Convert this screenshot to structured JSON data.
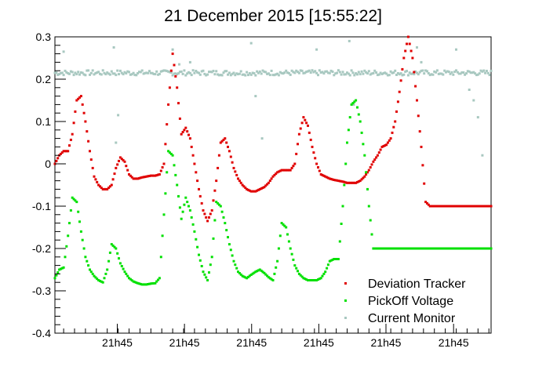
{
  "chart_data": {
    "type": "scatter",
    "title": "21 December 2015 [15:55:22]",
    "xlabel": "",
    "ylabel": "",
    "xlim": [
      0,
      100
    ],
    "ylim": [
      -0.4,
      0.3
    ],
    "grid": false,
    "legend_position": "bottom-right",
    "y_ticks": [
      {
        "value": 0.3,
        "label": "0.3"
      },
      {
        "value": 0.2,
        "label": "0.2"
      },
      {
        "value": 0.1,
        "label": "0.1"
      },
      {
        "value": 0.0,
        "label": "0"
      },
      {
        "value": -0.1,
        "label": "-0.1"
      },
      {
        "value": -0.2,
        "label": "-0.2"
      },
      {
        "value": -0.3,
        "label": "-0.3"
      },
      {
        "value": -0.4,
        "label": "-0.4"
      }
    ],
    "x_ticks": [
      {
        "value": 14.3,
        "label": "21h45"
      },
      {
        "value": 29.7,
        "label": "21h45"
      },
      {
        "value": 45.1,
        "label": "21h45"
      },
      {
        "value": 60.5,
        "label": "21h45"
      },
      {
        "value": 75.9,
        "label": "21h45"
      },
      {
        "value": 91.4,
        "label": "21h45"
      }
    ],
    "series": [
      {
        "name": "Deviation Tracker",
        "color": "#e00000",
        "x": [
          0,
          1,
          2,
          3,
          4,
          5,
          6,
          7,
          8,
          9,
          10,
          11,
          12,
          13,
          14,
          15,
          16,
          17,
          18,
          19,
          20,
          21,
          22,
          23,
          24,
          25,
          26,
          27,
          28,
          29,
          30,
          31,
          32,
          33,
          34,
          35,
          36,
          37,
          38,
          39,
          40,
          41,
          42,
          43,
          44,
          45,
          46,
          47,
          48,
          49,
          50,
          51,
          52,
          53,
          54,
          55,
          56,
          57,
          58,
          59,
          60,
          61,
          62,
          63,
          64,
          65,
          66,
          67,
          68,
          69,
          70,
          71,
          72,
          73,
          74,
          75,
          76,
          77,
          78,
          79,
          80,
          81,
          82,
          83,
          84,
          85,
          86,
          87,
          88,
          89,
          90,
          91,
          92,
          93,
          94,
          95,
          96,
          97,
          98,
          99,
          100
        ],
        "y": [
          0.0,
          0.02,
          0.03,
          0.03,
          0.07,
          0.15,
          0.16,
          0.1,
          0.03,
          -0.03,
          -0.05,
          -0.06,
          -0.06,
          -0.05,
          -0.01,
          0.015,
          0.005,
          -0.025,
          -0.035,
          -0.035,
          -0.032,
          -0.03,
          -0.028,
          -0.028,
          -0.025,
          0.0,
          0.14,
          0.26,
          0.18,
          0.07,
          0.085,
          0.06,
          0.0,
          -0.06,
          -0.11,
          -0.135,
          -0.11,
          -0.04,
          0.05,
          0.06,
          0.03,
          -0.01,
          -0.035,
          -0.05,
          -0.06,
          -0.065,
          -0.065,
          -0.06,
          -0.055,
          -0.045,
          -0.03,
          -0.02,
          -0.015,
          -0.015,
          -0.015,
          0.0,
          0.07,
          0.11,
          0.09,
          0.04,
          0.0,
          -0.025,
          -0.03,
          -0.035,
          -0.038,
          -0.04,
          -0.042,
          -0.045,
          -0.045,
          -0.045,
          -0.04,
          -0.03,
          -0.015,
          0.005,
          0.02,
          0.04,
          0.045,
          0.06,
          0.1,
          0.17,
          0.25,
          0.3,
          0.25,
          0.15,
          0.04,
          -0.09,
          -0.1,
          -0.1,
          -0.1,
          -0.1,
          -0.1,
          -0.1,
          -0.1,
          -0.1,
          -0.1,
          -0.1,
          -0.1,
          -0.1,
          -0.1,
          -0.1,
          -0.1
        ]
      },
      {
        "name": "PickOff Voltage",
        "color": "#00e000",
        "x": [
          0,
          1,
          2,
          3,
          4,
          5,
          6,
          7,
          8,
          9,
          10,
          11,
          12,
          13,
          14,
          15,
          16,
          17,
          18,
          19,
          20,
          21,
          22,
          23,
          24,
          25,
          26,
          27,
          28,
          29,
          30,
          31,
          32,
          33,
          34,
          35,
          36,
          37,
          38,
          39,
          40,
          41,
          42,
          43,
          44,
          45,
          46,
          47,
          48,
          49,
          50,
          51,
          52,
          53,
          54,
          55,
          56,
          57,
          58,
          59,
          60,
          61,
          62,
          63,
          64,
          65,
          66,
          67,
          68,
          69,
          70,
          71,
          72,
          73,
          74,
          75,
          76,
          77,
          78,
          79,
          80,
          81,
          82,
          83,
          84,
          85,
          86,
          87,
          88,
          89,
          90,
          91,
          92,
          93,
          94,
          95,
          96,
          97,
          98,
          99,
          100
        ],
        "y": [
          -0.27,
          -0.25,
          -0.245,
          -0.17,
          -0.08,
          -0.09,
          -0.16,
          -0.22,
          -0.25,
          -0.265,
          -0.275,
          -0.28,
          -0.25,
          -0.19,
          -0.2,
          -0.235,
          -0.255,
          -0.27,
          -0.278,
          -0.282,
          -0.285,
          -0.285,
          -0.283,
          -0.282,
          -0.27,
          -0.12,
          0.03,
          0.02,
          -0.05,
          -0.13,
          -0.08,
          -0.11,
          -0.16,
          -0.215,
          -0.255,
          -0.275,
          -0.22,
          -0.09,
          -0.1,
          -0.14,
          -0.19,
          -0.23,
          -0.255,
          -0.265,
          -0.27,
          -0.262,
          -0.255,
          -0.25,
          -0.258,
          -0.268,
          -0.275,
          -0.23,
          -0.14,
          -0.15,
          -0.2,
          -0.24,
          -0.26,
          -0.27,
          -0.275,
          -0.275,
          -0.275,
          -0.27,
          -0.255,
          -0.23,
          -0.225,
          -0.225,
          -0.1,
          0.05,
          0.14,
          0.15,
          0.1,
          0.02,
          -0.1,
          -0.2,
          -0.2,
          -0.2,
          -0.2,
          -0.2,
          -0.2,
          -0.2,
          -0.2,
          -0.2,
          -0.2,
          -0.2,
          -0.2,
          -0.2,
          -0.2,
          -0.2,
          -0.2,
          -0.2,
          -0.2,
          -0.2,
          -0.2,
          -0.2,
          -0.2,
          -0.2,
          -0.2,
          -0.2,
          -0.2,
          -0.2,
          -0.2
        ]
      },
      {
        "name": "Current Monitor",
        "color": "#a8c8c0",
        "baseline": 0.215,
        "outliers": [
          {
            "x": 2.0,
            "y": 0.265
          },
          {
            "x": 13.5,
            "y": 0.275
          },
          {
            "x": 14.5,
            "y": 0.115
          },
          {
            "x": 14.0,
            "y": 0.05
          },
          {
            "x": 27.0,
            "y": 0.27
          },
          {
            "x": 28.5,
            "y": 0.235
          },
          {
            "x": 31.0,
            "y": 0.24
          },
          {
            "x": 45.0,
            "y": 0.285
          },
          {
            "x": 46.0,
            "y": 0.16
          },
          {
            "x": 47.5,
            "y": 0.06
          },
          {
            "x": 60.0,
            "y": 0.27
          },
          {
            "x": 67.5,
            "y": 0.29
          },
          {
            "x": 68.5,
            "y": 0.14
          },
          {
            "x": 83.0,
            "y": 0.275
          },
          {
            "x": 84.0,
            "y": 0.24
          },
          {
            "x": 92.0,
            "y": 0.27
          },
          {
            "x": 95.0,
            "y": 0.175
          },
          {
            "x": 96.0,
            "y": 0.15
          },
          {
            "x": 97.0,
            "y": 0.11
          },
          {
            "x": 98.0,
            "y": 0.02
          }
        ]
      }
    ]
  }
}
